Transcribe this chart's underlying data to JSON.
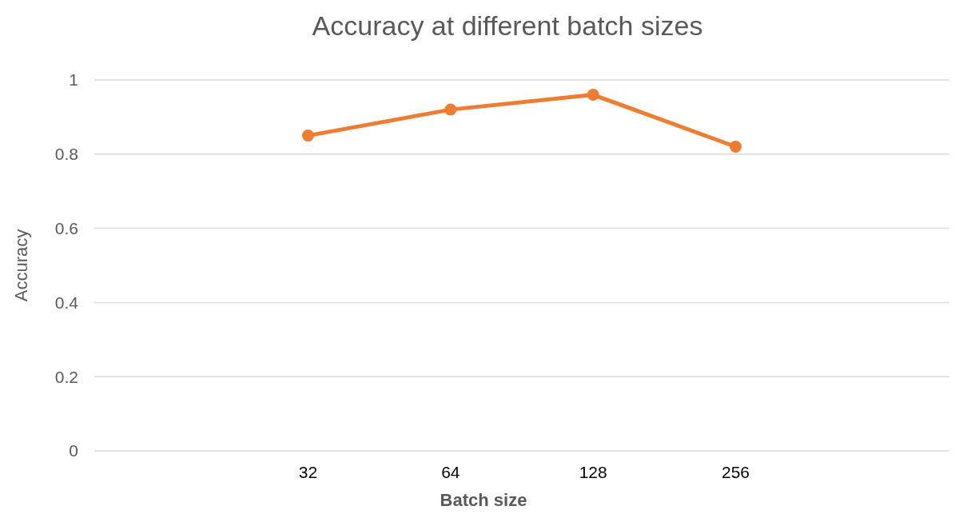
{
  "chart_data": {
    "type": "line",
    "title": "Accuracy at different batch sizes",
    "xlabel": "Batch size",
    "ylabel": "Accuracy",
    "categories": [
      null,
      "32",
      "64",
      "128",
      "256",
      null
    ],
    "series": [
      {
        "color": "#ed7d31",
        "values": [
          null,
          0.85,
          0.92,
          0.96,
          0.82,
          null
        ]
      }
    ],
    "ylim": [
      0,
      1
    ],
    "yticks": [
      0,
      0.2,
      0.4,
      0.6,
      0.8,
      1
    ],
    "grid": "y",
    "marker": "circle"
  }
}
